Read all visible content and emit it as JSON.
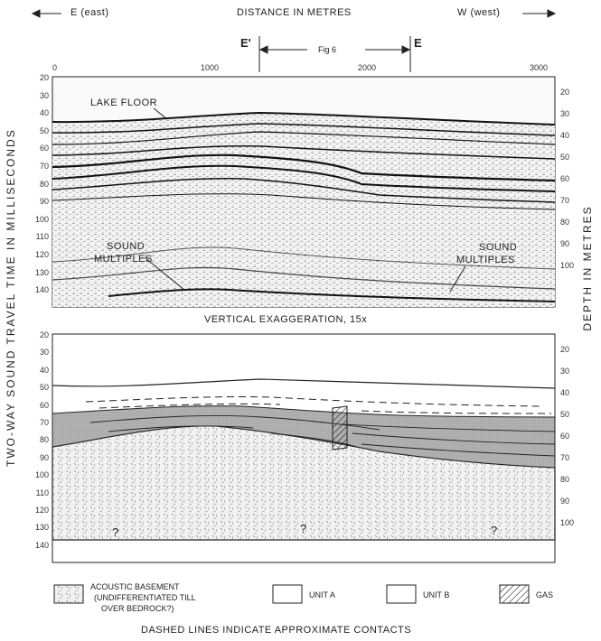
{
  "header": {
    "east": "E (east)",
    "distance": "DISTANCE IN METRES",
    "west": "W (west)",
    "e_prime": "E'",
    "e": "E",
    "fig_label": "Fig 6"
  },
  "x_axis": {
    "ticks": [
      "0",
      "1000",
      "2000",
      "3000"
    ]
  },
  "left_axis": {
    "title": "TWO-WAY SOUND TRAVEL TIME IN MILLISECONDS",
    "ticks": [
      "20",
      "30",
      "40",
      "50",
      "60",
      "70",
      "80",
      "90",
      "100",
      "110",
      "120",
      "130",
      "140"
    ]
  },
  "right_axis": {
    "title": "DEPTH IN METRES",
    "ticks": [
      "20",
      "30",
      "40",
      "50",
      "60",
      "70",
      "80",
      "90",
      "100"
    ]
  },
  "top_panel": {
    "lake_floor": "LAKE FLOOR",
    "sound_left_1": "SOUND",
    "sound_left_2": "MULTIPLES",
    "sound_right_1": "SOUND",
    "sound_right_2": "MULTIPLES"
  },
  "middle_caption": "VERTICAL EXAGGERATION, 15x",
  "bottom_panel": {
    "q1": "?",
    "q2": "?",
    "q3": "?"
  },
  "legend": {
    "basement_1": "ACOUSTIC BASEMENT",
    "basement_2": "(UNDIFFERENTIATED TILL",
    "basement_3": "OVER BEDROCK?)",
    "unit_a": "UNIT A",
    "unit_b": "UNIT B",
    "gas": "GAS"
  },
  "footer": "DASHED LINES INDICATE APPROXIMATE CONTACTS",
  "colors": {
    "ink": "#1e1e1e",
    "unit_b_fill": "#a9a9a9",
    "basement_fill": "#dcdcdc"
  }
}
